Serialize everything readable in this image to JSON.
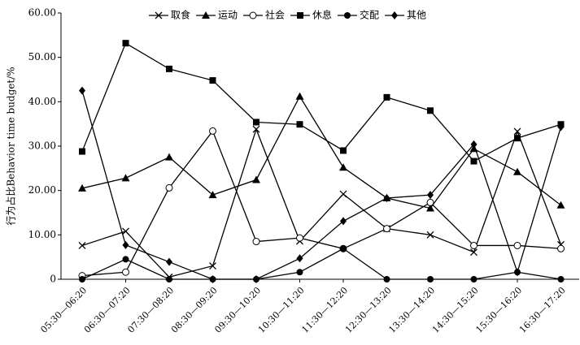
{
  "chart_data": {
    "type": "line",
    "y_label": "行为占比Behavior time budget/%",
    "categories": [
      "05:30—06:20",
      "06:30—07:20",
      "07:30—08:20",
      "08:30—09:20",
      "09:30—10:20",
      "10:30—11:20",
      "11:30—12:20",
      "12:30—13:20",
      "13:30—14:20",
      "14:30—15:20",
      "15:30—16:20",
      "16:30—17:20"
    ],
    "series": [
      {
        "name": "取食",
        "color": "#000000",
        "marker": "x",
        "values": [
          7.6,
          10.8,
          0.5,
          3.0,
          33.8,
          8.6,
          19.2,
          11.4,
          10.0,
          6.1,
          33.3,
          7.8
        ]
      },
      {
        "name": "运动",
        "color": "#000000",
        "marker": "triangle",
        "values": [
          20.5,
          22.8,
          27.5,
          19.0,
          22.4,
          41.2,
          25.2,
          18.3,
          16.0,
          29.4,
          24.2,
          16.7
        ]
      },
      {
        "name": "社会",
        "color": "#000000",
        "marker": "open-circle",
        "values": [
          0.8,
          1.6,
          20.6,
          33.4,
          8.5,
          9.3,
          6.9,
          11.4,
          17.3,
          7.6,
          7.6,
          6.9
        ]
      },
      {
        "name": "休息",
        "color": "#000000",
        "marker": "square",
        "values": [
          28.8,
          53.2,
          47.4,
          44.8,
          35.4,
          34.9,
          29.0,
          41.0,
          38.0,
          26.6,
          31.8,
          34.9
        ]
      },
      {
        "name": "交配",
        "color": "#000000",
        "marker": "circle",
        "values": [
          0,
          4.5,
          0,
          0,
          0,
          1.6,
          6.9,
          0,
          0,
          0,
          1.6,
          0
        ]
      },
      {
        "name": "其他",
        "color": "#000000",
        "marker": "diamond",
        "values": [
          42.5,
          7.7,
          3.9,
          0,
          0,
          4.7,
          13.1,
          18.3,
          19.0,
          30.4,
          1.6,
          34.3
        ]
      }
    ],
    "ylim": [
      0,
      60
    ],
    "yticks": [
      0,
      {
        "value": 10,
        "label": "10.00"
      },
      {
        "value": 20,
        "label": "20.00"
      },
      {
        "value": 30,
        "label": "30.00"
      },
      {
        "value": 40,
        "label": "40.00"
      },
      {
        "value": 50,
        "label": "50.00"
      },
      {
        "value": 60,
        "label": "60.00"
      }
    ],
    "grid": false,
    "legend": "top"
  }
}
